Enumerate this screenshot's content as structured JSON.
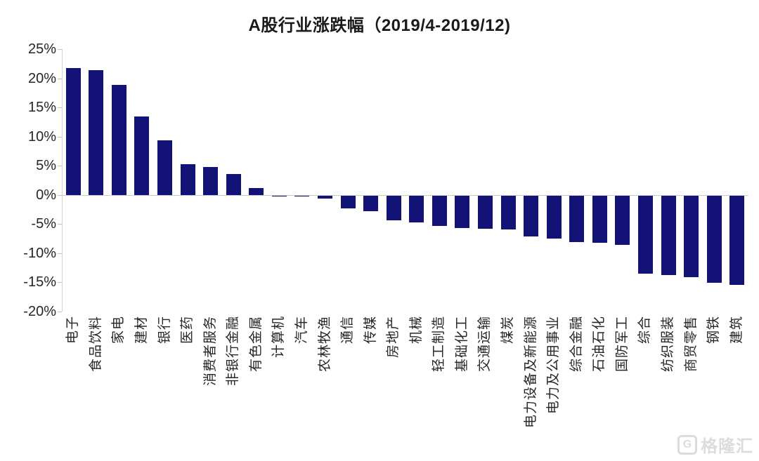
{
  "title": "A股行业涨跌幅（2019/4-2019/12)",
  "watermark": {
    "logo": "G",
    "text": "格隆汇"
  },
  "chart_data": {
    "type": "bar",
    "title": "A股行业涨跌幅（2019/4-2019/12)",
    "categories": [
      "电子",
      "食品饮料",
      "家电",
      "建材",
      "银行",
      "医药",
      "消费者服务",
      "非银行金融",
      "有色金属",
      "计算机",
      "汽车",
      "农林牧渔",
      "通信",
      "传媒",
      "房地产",
      "机械",
      "轻工制造",
      "基础化工",
      "交通运输",
      "煤炭",
      "电力设备及新能源",
      "电力及公用事业",
      "综合金融",
      "石油石化",
      "国防军工",
      "综合",
      "纺织服装",
      "商贸零售",
      "钢铁",
      "建筑"
    ],
    "values": [
      21.7,
      21.4,
      18.9,
      13.5,
      9.3,
      5.3,
      4.8,
      3.6,
      1.2,
      -0.1,
      -0.2,
      -0.5,
      -2.2,
      -2.7,
      -4.2,
      -4.6,
      -5.2,
      -5.6,
      -5.7,
      -5.8,
      -7.0,
      -7.4,
      -8.0,
      -8.1,
      -8.5,
      -13.4,
      -13.6,
      -14.0,
      -15.0,
      -15.3
    ],
    "xlabel": "",
    "ylabel": "",
    "ylim": [
      -20,
      25
    ],
    "yticks": [
      25,
      20,
      15,
      10,
      5,
      0,
      -5,
      -10,
      -15,
      -20
    ],
    "ytick_suffix": "%",
    "bar_color": "#131377",
    "axis_color": "#d4d4d4",
    "zero_line_color": "#c9c9c9",
    "grid": false,
    "legend": false
  }
}
